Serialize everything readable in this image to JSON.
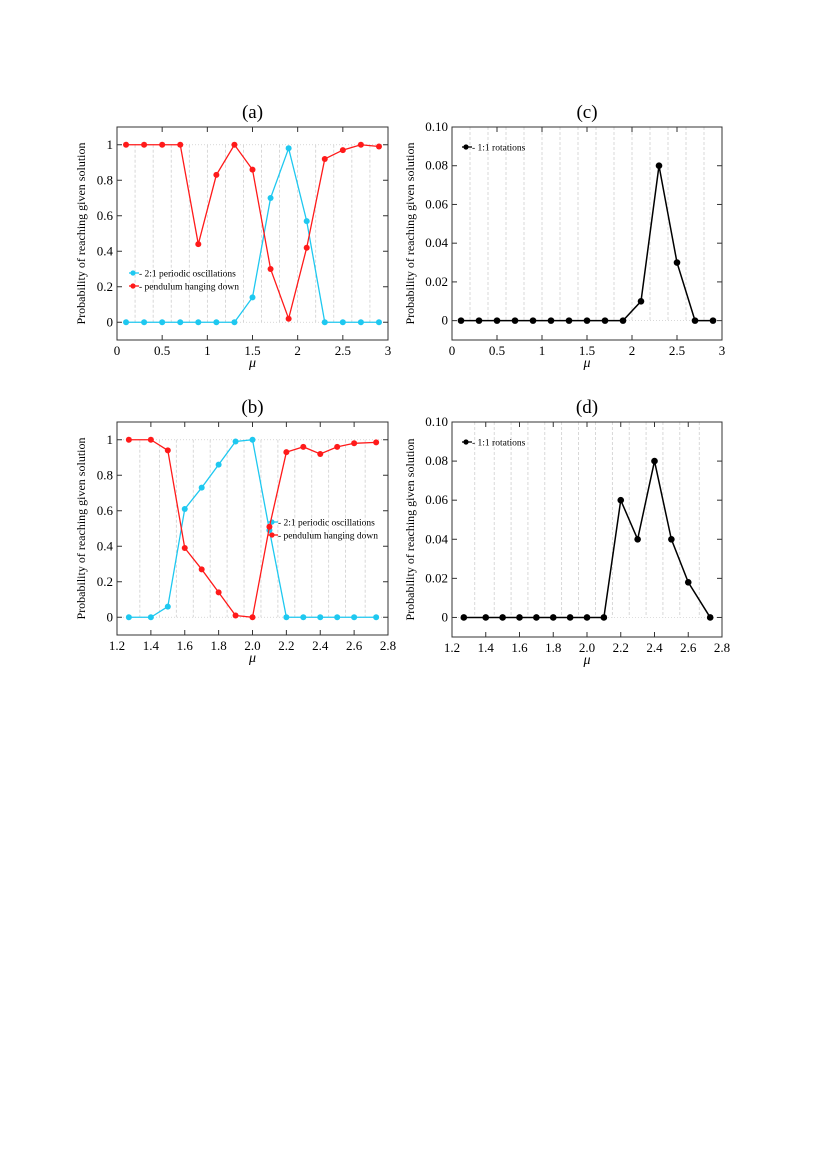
{
  "chart_data": [
    {
      "type": "line",
      "title": "(a)",
      "xlabel": "μ",
      "ylabel": "Probability of reaching given solution",
      "xlim": [
        0,
        3
      ],
      "ylim": [
        -0.1,
        1.1
      ],
      "xticks": [
        0,
        0.5,
        1,
        1.5,
        2,
        2.5,
        3
      ],
      "xtick_labels": [
        "0",
        "0.5",
        "1",
        "1.5",
        "2",
        "2.5",
        "3"
      ],
      "yticks": [
        0,
        0.2,
        0.4,
        0.6,
        0.8,
        1
      ],
      "ytick_labels": [
        "0",
        "0.2",
        "0.4",
        "0.6",
        "0.8",
        "1"
      ],
      "legend": "lower-left",
      "x": [
        0.1,
        0.3,
        0.5,
        0.7,
        0.9,
        1.1,
        1.3,
        1.5,
        1.7,
        1.9,
        2.1,
        2.3,
        2.5,
        2.7,
        2.9
      ],
      "series": [
        {
          "name": "- 2:1 periodic oscillations",
          "color": "#1ec8f0",
          "values": [
            0,
            0,
            0,
            0,
            0,
            0,
            0,
            0.14,
            0.7,
            0.98,
            0.57,
            0,
            0,
            0,
            0
          ]
        },
        {
          "name": "- pendulum hanging down",
          "color": "#ff1a1a",
          "values": [
            1,
            1,
            1,
            1,
            0.44,
            0.83,
            1,
            0.86,
            0.3,
            0.02,
            0.42,
            0.92,
            0.97,
            1,
            0.99
          ]
        }
      ]
    },
    {
      "type": "line",
      "title": "(b)",
      "xlabel": "μ",
      "ylabel": "Probability of reaching given solution",
      "xlim": [
        1.2,
        2.8
      ],
      "ylim": [
        -0.1,
        1.1
      ],
      "xticks": [
        1.2,
        1.4,
        1.6,
        1.8,
        2.0,
        2.2,
        2.4,
        2.6,
        2.8
      ],
      "xtick_labels": [
        "1.2",
        "1.4",
        "1.6",
        "1.8",
        "2.0",
        "2.2",
        "2.4",
        "2.6",
        "2.8"
      ],
      "yticks": [
        0,
        0.2,
        0.4,
        0.6,
        0.8,
        1
      ],
      "ytick_labels": [
        "0",
        "0.2",
        "0.4",
        "0.6",
        "0.8",
        "1"
      ],
      "legend": "center-right",
      "x": [
        1.27,
        1.4,
        1.5,
        1.6,
        1.7,
        1.8,
        1.9,
        2.0,
        2.1,
        2.2,
        2.3,
        2.4,
        2.5,
        2.6,
        2.73
      ],
      "series": [
        {
          "name": "- 2:1 periodic oscillations",
          "color": "#1ec8f0",
          "values": [
            0,
            0,
            0.06,
            0.61,
            0.73,
            0.86,
            0.99,
            1.0,
            0.49,
            0,
            0,
            0,
            0,
            0,
            0
          ]
        },
        {
          "name": "- pendulum hanging down",
          "color": "#ff1a1a",
          "values": [
            1,
            1,
            0.94,
            0.39,
            0.27,
            0.14,
            0.01,
            0,
            0.51,
            0.93,
            0.96,
            0.92,
            0.96,
            0.98,
            0.985
          ]
        }
      ]
    },
    {
      "type": "line",
      "title": "(c)",
      "xlabel": "μ",
      "ylabel": "Probability of reaching given solution",
      "xlim": [
        0,
        3
      ],
      "ylim": [
        -0.01,
        0.1
      ],
      "xticks": [
        0,
        0.5,
        1,
        1.5,
        2,
        2.5,
        3
      ],
      "xtick_labels": [
        "0",
        "0.5",
        "1",
        "1.5",
        "2",
        "2.5",
        "3"
      ],
      "yticks": [
        0,
        0.02,
        0.04,
        0.06,
        0.08,
        0.1
      ],
      "ytick_labels": [
        "0",
        "0.02",
        "0.04",
        "0.06",
        "0.08",
        "0.10"
      ],
      "legend": "top-left",
      "x": [
        0.1,
        0.3,
        0.5,
        0.7,
        0.9,
        1.1,
        1.3,
        1.5,
        1.7,
        1.9,
        2.1,
        2.3,
        2.5,
        2.7,
        2.9
      ],
      "series": [
        {
          "name": "- 1:1 rotations",
          "color": "#000000",
          "values": [
            0,
            0,
            0,
            0,
            0,
            0,
            0,
            0,
            0,
            0,
            0.01,
            0.08,
            0.03,
            0,
            0
          ]
        }
      ]
    },
    {
      "type": "line",
      "title": "(d)",
      "xlabel": "μ",
      "ylabel": "Probability of reaching given solution",
      "xlim": [
        1.2,
        2.8
      ],
      "ylim": [
        -0.01,
        0.1
      ],
      "xticks": [
        1.2,
        1.4,
        1.6,
        1.8,
        2.0,
        2.2,
        2.4,
        2.6,
        2.8
      ],
      "xtick_labels": [
        "1.2",
        "1.4",
        "1.6",
        "1.8",
        "2.0",
        "2.2",
        "2.4",
        "2.6",
        "2.8"
      ],
      "yticks": [
        0,
        0.02,
        0.04,
        0.06,
        0.08,
        0.1
      ],
      "ytick_labels": [
        "0",
        "0.02",
        "0.04",
        "0.06",
        "0.08",
        "0.10"
      ],
      "legend": "top-left",
      "x": [
        1.27,
        1.4,
        1.5,
        1.6,
        1.7,
        1.8,
        1.9,
        2.0,
        2.1,
        2.2,
        2.3,
        2.4,
        2.5,
        2.6,
        2.73
      ],
      "series": [
        {
          "name": "- 1:1 rotations",
          "color": "#000000",
          "values": [
            0,
            0,
            0,
            0,
            0,
            0,
            0,
            0,
            0,
            0.06,
            0.04,
            0.08,
            0.04,
            0.018,
            0
          ]
        }
      ]
    }
  ]
}
